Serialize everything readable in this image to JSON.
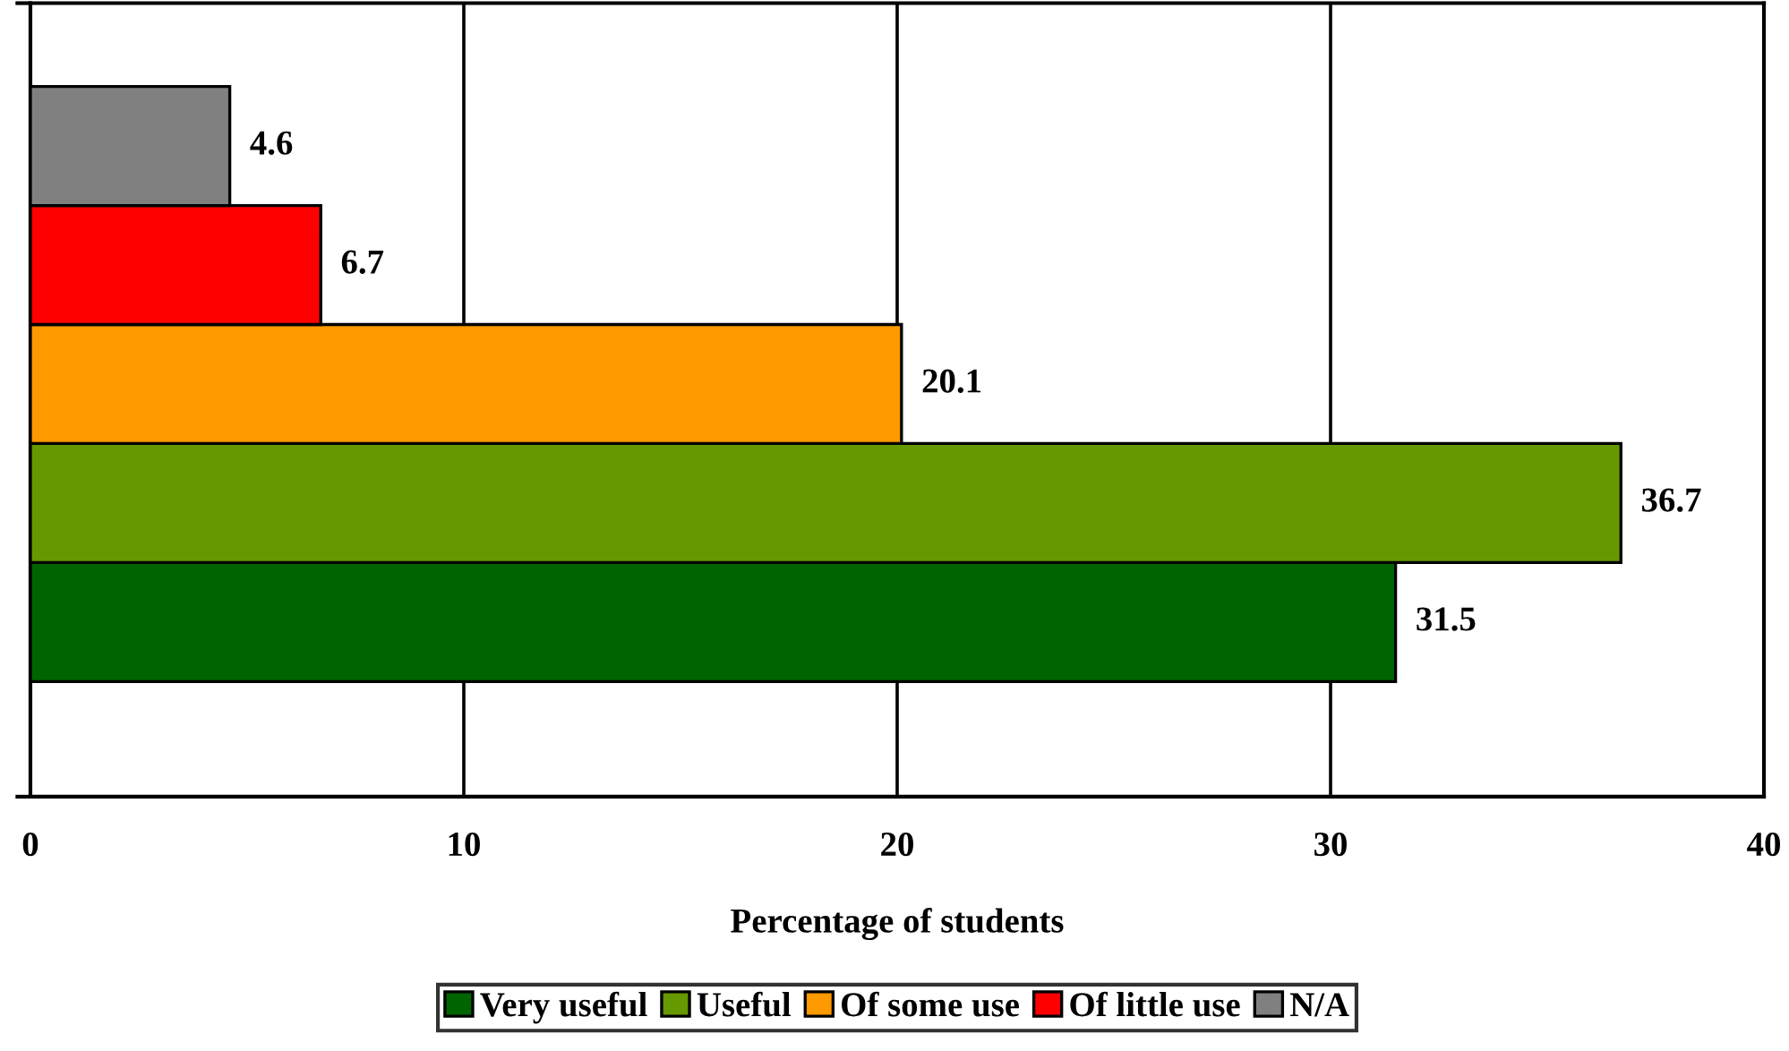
{
  "chart_data": {
    "type": "bar",
    "orientation": "horizontal",
    "xlabel": "Percentage of students",
    "categories": [
      null
    ],
    "series": [
      {
        "name": "Very useful",
        "color": "#006400",
        "values": [
          31.5
        ]
      },
      {
        "name": "Useful",
        "color": "#669900",
        "values": [
          36.7
        ]
      },
      {
        "name": "Of some use",
        "color": "#ff9900",
        "values": [
          20.1
        ]
      },
      {
        "name": "Of little use",
        "color": "#ff0000",
        "values": [
          6.7
        ]
      },
      {
        "name": "N/A",
        "color": "#808080",
        "values": [
          4.6
        ]
      }
    ],
    "xlim": [
      0,
      40
    ],
    "xticks": [
      0,
      10,
      20,
      30,
      40
    ],
    "grid": "x",
    "legend": "bottom",
    "data_labels": true,
    "tick_labels": "x"
  }
}
